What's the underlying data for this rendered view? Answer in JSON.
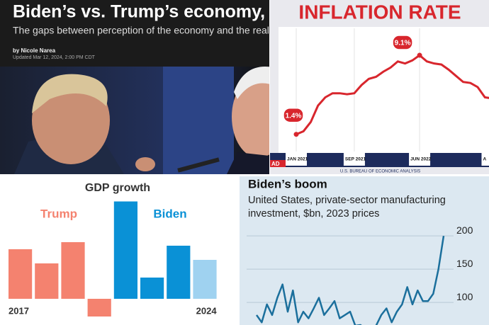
{
  "article": {
    "title": "Biden’s vs. Trump’s economy,",
    "subtitle": "The gaps between perception of the economy and the reality",
    "byline": "by Nicole Narea",
    "updated": "Updated Mar 12, 2024, 2:00 PM CDT"
  },
  "chart_data": [
    {
      "type": "line",
      "title": "INFLATION RATE",
      "source": "U.S. BUREAU OF ECONOMIC ANALYSIS",
      "corner_tag": "AD",
      "categories": [
        "JAN 2021",
        null,
        null,
        null,
        null,
        null,
        null,
        null,
        "SEP 2021",
        null,
        null,
        null,
        null,
        null,
        null,
        null,
        null,
        "JUN 2022",
        null,
        null,
        null,
        null,
        null,
        null,
        null,
        null,
        null,
        "A"
      ],
      "values": [
        1.4,
        1.7,
        2.6,
        4.2,
        5.0,
        5.4,
        5.4,
        5.3,
        5.4,
        6.2,
        6.8,
        7.0,
        7.5,
        7.9,
        8.5,
        8.3,
        8.6,
        9.1,
        8.5,
        8.3,
        8.2,
        7.7,
        7.1,
        6.5,
        6.4,
        6.0,
        5.0,
        4.9
      ],
      "value_labels": [
        "1.4%",
        null,
        null,
        null,
        null,
        null,
        null,
        null,
        null,
        null,
        null,
        null,
        null,
        null,
        null,
        null,
        null,
        "9.1%",
        null,
        null,
        null,
        null,
        null,
        null,
        null,
        null,
        null,
        null
      ],
      "color": "#d8262d",
      "ylim": [
        0,
        10
      ],
      "grid": true
    },
    {
      "type": "bar",
      "title": "GDP growth",
      "categories": [
        "2017",
        null,
        null,
        null,
        null,
        null,
        null,
        "2024"
      ],
      "series": [
        {
          "name": "Trump",
          "color": "#f4826f",
          "values": [
            2.8,
            2.0,
            3.2,
            -1.0,
            null,
            null,
            null,
            null
          ]
        },
        {
          "name": "Biden",
          "color": "#0a91d6",
          "colors": [
            null,
            null,
            null,
            null,
            "#0a91d6",
            "#0a91d6",
            "#0a91d6",
            "#9fd2f0"
          ],
          "values": [
            null,
            null,
            null,
            null,
            5.5,
            1.2,
            3.0,
            2.2
          ]
        }
      ],
      "ylim": [
        -1.2,
        5.8
      ]
    },
    {
      "type": "line",
      "title": "Biden’s boom",
      "subtitle": "United States, private-sector manufacturing investment, $bn, 2023 prices",
      "values": [
        81,
        70,
        97,
        81,
        107,
        127,
        86,
        118,
        70,
        86,
        76,
        91,
        107,
        81,
        91,
        102,
        76,
        81,
        86,
        65,
        66,
        60,
        62,
        65,
        81,
        91,
        70,
        86,
        97,
        123,
        97,
        118,
        102,
        102,
        113,
        150,
        200
      ],
      "color": "#1b6f9c",
      "ylim": [
        66,
        214
      ],
      "yticks": [
        100,
        150,
        200
      ],
      "grid": true
    }
  ]
}
